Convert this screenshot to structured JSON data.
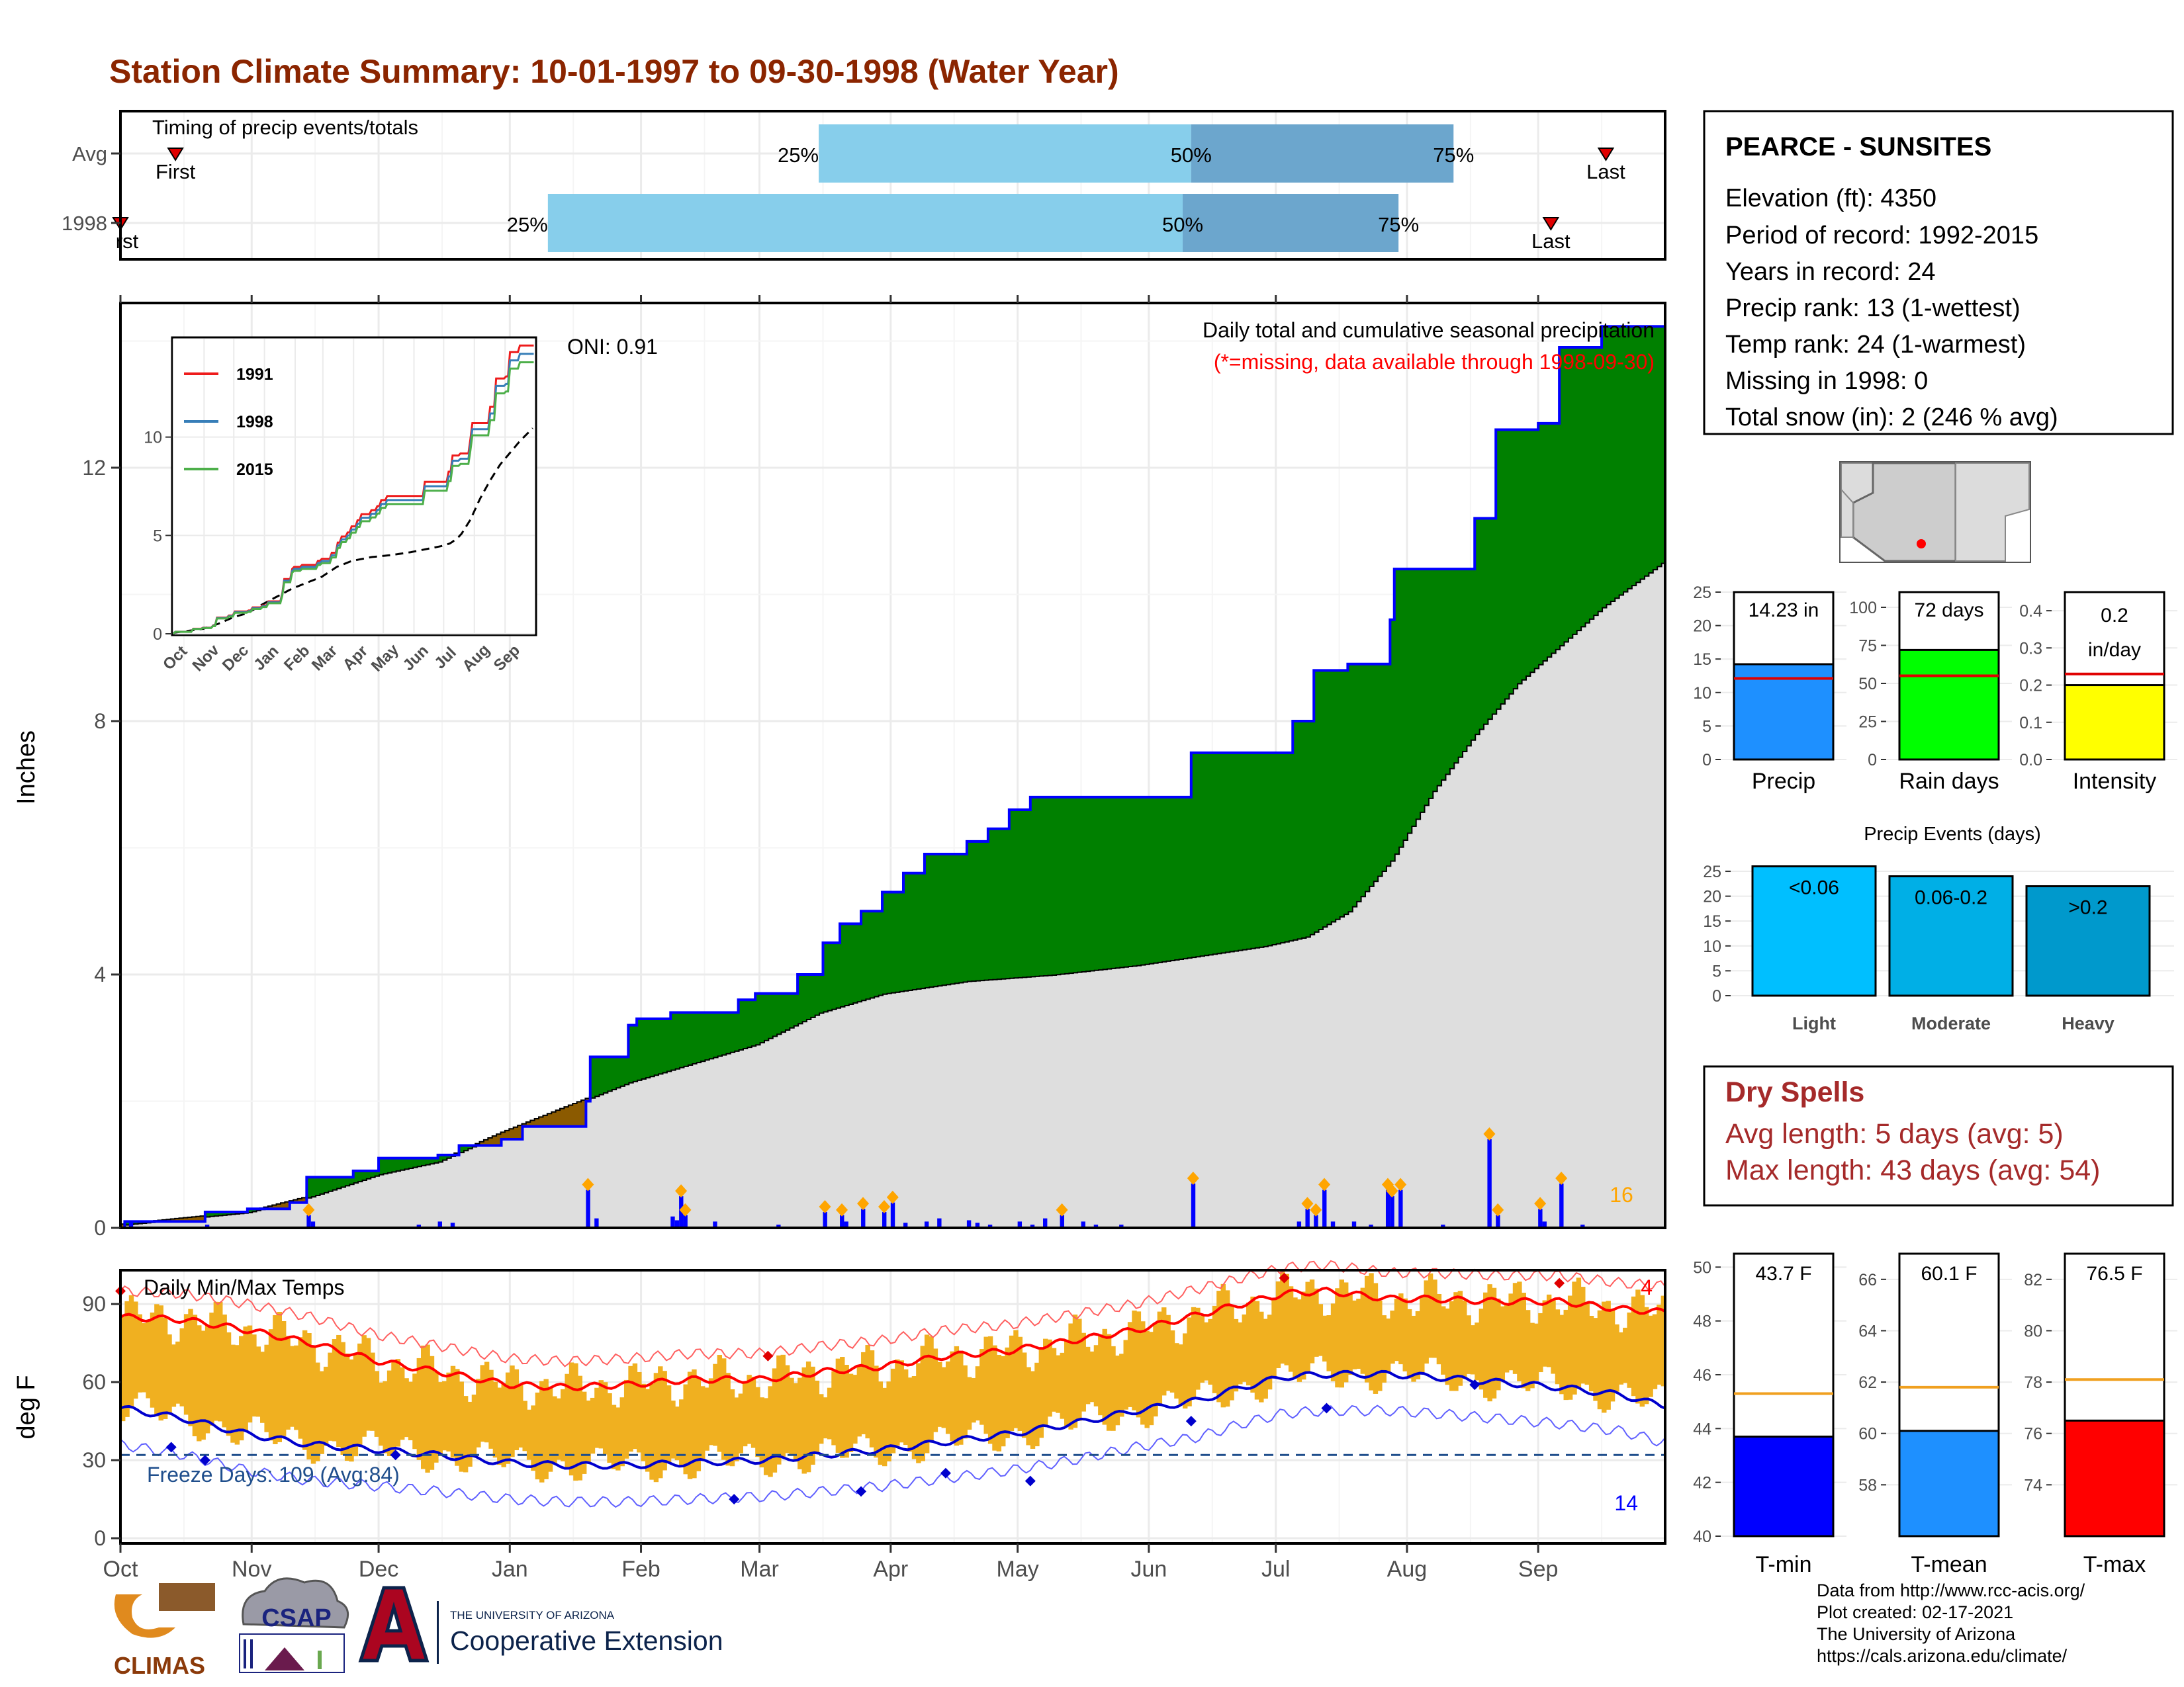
{
  "title": "Station Climate Summary: 10-01-1997 to 09-30-1998 (Water Year)",
  "colors": {
    "title": "#8b2500",
    "bar_light": "#87ceeb",
    "bar_mid": "#6ca6cd",
    "green": "#008000",
    "brown": "#8b5a00",
    "avg_fill": "#dedede",
    "precip_bar": "#0000ff",
    "temp_bar": "#f0b020",
    "avg_max": "#ff0000",
    "avg_min": "#0000cd",
    "dry_spell": "#a52a2a"
  },
  "timing_panel": {
    "label": "Timing of precip events/totals",
    "rows": [
      {
        "name": "Avg",
        "first_day": 13,
        "p25_day": 165,
        "p50_day": 253,
        "p75_day": 315,
        "last_day": 351
      },
      {
        "name": "1998",
        "first_day": 0,
        "p25_day": 101,
        "p50_day": 251,
        "p75_day": 302,
        "last_day": 338
      }
    ],
    "first_label": "First",
    "first_label_1998": "rst",
    "last_label": "Last",
    "p25_label": "25%",
    "p50_label": "50%",
    "p75_label": "75%"
  },
  "main_panel": {
    "ylabel": "Inches",
    "y_ticks": [
      0,
      4,
      8,
      12
    ],
    "oni_label": "ONI: 0.91",
    "subtitle": "Daily total and cumulative seasonal precipitation",
    "missing_note": "(*=missing, data available through 1998-09-30)",
    "extreme_count": "16"
  },
  "inset": {
    "legend": [
      "1991",
      "1998",
      "2015"
    ],
    "legend_colors": [
      "#ee1c1c",
      "#377eb8",
      "#4daf4a"
    ],
    "y_ticks": [
      0,
      5,
      10
    ],
    "x_ticks": [
      "Oct",
      "Nov",
      "Dec",
      "Jan",
      "Feb",
      "Mar",
      "Apr",
      "May",
      "Jun",
      "Jul",
      "Aug",
      "Sep"
    ]
  },
  "temp_panel": {
    "label": "Daily Min/Max Temps",
    "ylabel": "deg F",
    "y_ticks": [
      0,
      30,
      60,
      90
    ],
    "freeze_label": "Freeze Days: 109 (Avg:84)",
    "hot_count": "4",
    "cold_count": "14"
  },
  "x_months": [
    "Oct",
    "Nov",
    "Dec",
    "Jan",
    "Feb",
    "Mar",
    "Apr",
    "May",
    "Jun",
    "Jul",
    "Aug",
    "Sep"
  ],
  "station": {
    "name": "PEARCE - SUNSITES",
    "lines": [
      "Elevation (ft): 4350",
      "Period of record: 1992-2015",
      "Years in record: 24",
      "Precip rank: 13 (1-wettest)",
      "Temp rank: 24 (1-warmest)",
      "Missing in 1998: 0",
      "Total snow (in): 2 (246 % avg)"
    ]
  },
  "summary_bars": [
    {
      "label": "Precip",
      "value_label": "14.23 in",
      "value": 14.23,
      "avg": 12.1,
      "ymax": 25,
      "ticks": [
        0,
        5,
        10,
        15,
        20,
        25
      ],
      "color": "#1e90ff"
    },
    {
      "label": "Rain days",
      "value_label": "72 days",
      "value": 72,
      "avg": 55,
      "ymax": 110,
      "ticks": [
        0,
        25,
        50,
        75,
        100
      ],
      "color": "#00ff00"
    },
    {
      "label": "Intensity",
      "value_label": "0.2 in/day",
      "value_label_lines": [
        "0.2",
        "in/day"
      ],
      "value": 0.2,
      "avg": 0.23,
      "ymax": 0.45,
      "ticks": [
        0.0,
        0.1,
        0.2,
        0.3,
        0.4
      ],
      "color": "#ffff00"
    }
  ],
  "precip_events": {
    "title": "Precip Events (days)",
    "ticks": [
      0,
      5,
      10,
      15,
      20,
      25
    ],
    "bars": [
      {
        "name": "Light",
        "label": "<0.06",
        "value": 26,
        "color": "#00bfff"
      },
      {
        "name": "Moderate",
        "label": "0.06-0.2",
        "value": 24,
        "color": "#00afe6"
      },
      {
        "name": "Heavy",
        "label": ">0.2",
        "value": 22,
        "color": "#0099cc"
      }
    ]
  },
  "dry_spells": {
    "title": "Dry Spells",
    "avg_line": "Avg length: 5 days (avg: 5)",
    "max_line": "Max length: 43 days (avg: 54)"
  },
  "temp_bars": [
    {
      "label": "T-min",
      "value_label": "43.7 F",
      "value": 43.7,
      "avg": 45.3,
      "ymin": 40,
      "ymax": 50.5,
      "ticks": [
        40,
        42,
        44,
        46,
        48,
        50
      ],
      "color": "#0000ff"
    },
    {
      "label": "T-mean",
      "value_label": "60.1 F",
      "value": 60.1,
      "avg": 61.8,
      "ymin": 56,
      "ymax": 67,
      "ticks": [
        58,
        60,
        62,
        64,
        66
      ],
      "color": "#1e90ff"
    },
    {
      "label": "T-max",
      "value_label": "76.5 F",
      "value": 76.5,
      "avg": 78.1,
      "ymin": 72,
      "ymax": 83,
      "ticks": [
        74,
        76,
        78,
        80,
        82
      ],
      "color": "#ff0000"
    }
  ],
  "footer": {
    "lines": [
      "Data from http://www.rcc-acis.org/",
      "Plot created: 02-17-2021",
      "The University of Arizona",
      "https://cals.arizona.edu/climate/"
    ]
  },
  "logos": {
    "climas": "CLIMAS",
    "csap": "CSAP",
    "ua_small": "THE UNIVERSITY OF ARIZONA",
    "coop": "Cooperative Extension"
  },
  "chart_data": {
    "type": "area",
    "title": "Station Climate Summary: 10-01-1997 to 09-30-1998 (Water Year)",
    "xlabel": "",
    "ylabel": "Inches",
    "ylim": [
      0,
      14.6
    ],
    "x": [
      "Oct",
      "Nov",
      "Dec",
      "Jan",
      "Feb",
      "Mar",
      "Apr",
      "May",
      "Jun",
      "Jul",
      "Aug",
      "Sep"
    ],
    "series": [
      {
        "name": "1998",
        "points": [
          [
            0,
            0
          ],
          [
            1,
            0.1
          ],
          [
            20,
            0.25
          ],
          [
            30,
            0.3
          ],
          [
            40,
            0.4
          ],
          [
            44,
            0.8
          ],
          [
            55,
            0.9
          ],
          [
            61,
            1.1
          ],
          [
            70,
            1.1
          ],
          [
            75,
            1.15
          ],
          [
            80,
            1.3
          ],
          [
            90,
            1.4
          ],
          [
            95,
            1.6
          ],
          [
            110,
            2.0
          ],
          [
            111,
            2.7
          ],
          [
            120,
            3.2
          ],
          [
            122,
            3.3
          ],
          [
            130,
            3.4
          ],
          [
            140,
            3.4
          ],
          [
            146,
            3.6
          ],
          [
            150,
            3.7
          ],
          [
            160,
            4.0
          ],
          [
            166,
            4.5
          ],
          [
            170,
            4.8
          ],
          [
            175,
            5.0
          ],
          [
            180,
            5.3
          ],
          [
            185,
            5.6
          ],
          [
            190,
            5.9
          ],
          [
            200,
            6.1
          ],
          [
            205,
            6.3
          ],
          [
            210,
            6.6
          ],
          [
            215,
            6.8
          ],
          [
            230,
            6.8
          ],
          [
            250,
            6.8
          ],
          [
            253,
            7.5
          ],
          [
            270,
            7.5
          ],
          [
            277,
            8.0
          ],
          [
            282,
            8.8
          ],
          [
            290,
            8.9
          ],
          [
            300,
            9.6
          ],
          [
            301,
            10.4
          ],
          [
            310,
            10.4
          ],
          [
            320,
            11.2
          ],
          [
            325,
            12.6
          ],
          [
            335,
            12.7
          ],
          [
            340,
            13.9
          ],
          [
            350,
            14.23
          ],
          [
            364,
            14.23
          ]
        ]
      },
      {
        "name": "Average",
        "points": [
          [
            0,
            0.05
          ],
          [
            30,
            0.25
          ],
          [
            45,
            0.5
          ],
          [
            61,
            0.85
          ],
          [
            75,
            1.05
          ],
          [
            90,
            1.5
          ],
          [
            105,
            1.9
          ],
          [
            120,
            2.3
          ],
          [
            135,
            2.6
          ],
          [
            150,
            2.9
          ],
          [
            165,
            3.4
          ],
          [
            180,
            3.7
          ],
          [
            200,
            3.9
          ],
          [
            220,
            4.0
          ],
          [
            240,
            4.15
          ],
          [
            255,
            4.3
          ],
          [
            270,
            4.45
          ],
          [
            280,
            4.6
          ],
          [
            290,
            5.0
          ],
          [
            300,
            5.8
          ],
          [
            310,
            6.9
          ],
          [
            320,
            7.8
          ],
          [
            330,
            8.6
          ],
          [
            340,
            9.2
          ],
          [
            350,
            9.8
          ],
          [
            360,
            10.3
          ],
          [
            364,
            10.5
          ]
        ]
      }
    ],
    "daily_precip": [
      [
        2,
        0.1
      ],
      [
        20,
        0.05
      ],
      [
        44,
        0.2
      ],
      [
        45,
        0.1
      ],
      [
        70,
        0.05
      ],
      [
        75,
        0.1
      ],
      [
        78,
        0.08
      ],
      [
        110,
        0.6
      ],
      [
        112,
        0.15
      ],
      [
        130,
        0.18
      ],
      [
        131,
        0.12
      ],
      [
        132,
        0.5
      ],
      [
        133,
        0.2
      ],
      [
        140,
        0.1
      ],
      [
        155,
        0.05
      ],
      [
        166,
        0.25
      ],
      [
        170,
        0.2
      ],
      [
        171,
        0.1
      ],
      [
        175,
        0.3
      ],
      [
        180,
        0.25
      ],
      [
        182,
        0.4
      ],
      [
        185,
        0.08
      ],
      [
        190,
        0.1
      ],
      [
        193,
        0.15
      ],
      [
        200,
        0.12
      ],
      [
        202,
        0.08
      ],
      [
        205,
        0.05
      ],
      [
        212,
        0.1
      ],
      [
        215,
        0.05
      ],
      [
        218,
        0.15
      ],
      [
        222,
        0.2
      ],
      [
        227,
        0.1
      ],
      [
        230,
        0.05
      ],
      [
        236,
        0.05
      ],
      [
        253,
        0.7
      ],
      [
        278,
        0.1
      ],
      [
        280,
        0.3
      ],
      [
        282,
        0.2
      ],
      [
        284,
        0.6
      ],
      [
        286,
        0.1
      ],
      [
        291,
        0.1
      ],
      [
        295,
        0.05
      ],
      [
        299,
        0.6
      ],
      [
        300,
        0.5
      ],
      [
        302,
        0.6
      ],
      [
        312,
        0.05
      ],
      [
        323,
        1.4
      ],
      [
        325,
        0.2
      ],
      [
        335,
        0.3
      ],
      [
        336,
        0.1
      ],
      [
        340,
        0.7
      ],
      [
        345,
        0.05
      ]
    ],
    "temperature": {
      "ylabel": "deg F",
      "ylim": [
        -2,
        103
      ],
      "avg_max": [
        [
          0,
          85
        ],
        [
          15,
          84
        ],
        [
          30,
          80
        ],
        [
          45,
          75
        ],
        [
          61,
          68
        ],
        [
          75,
          64
        ],
        [
          92,
          59
        ],
        [
          105,
          58
        ],
        [
          120,
          59
        ],
        [
          135,
          61
        ],
        [
          152,
          61
        ],
        [
          166,
          64
        ],
        [
          180,
          66
        ],
        [
          195,
          70
        ],
        [
          210,
          72
        ],
        [
          225,
          76
        ],
        [
          240,
          80
        ],
        [
          255,
          86
        ],
        [
          265,
          90
        ],
        [
          275,
          94
        ],
        [
          285,
          95
        ],
        [
          290,
          94
        ],
        [
          300,
          92
        ],
        [
          310,
          92
        ],
        [
          325,
          91
        ],
        [
          340,
          91
        ],
        [
          355,
          88
        ],
        [
          364,
          87
        ]
      ],
      "avg_min": [
        [
          0,
          50
        ],
        [
          15,
          46
        ],
        [
          30,
          40
        ],
        [
          45,
          36
        ],
        [
          61,
          34
        ],
        [
          75,
          32
        ],
        [
          92,
          29
        ],
        [
          105,
          28
        ],
        [
          120,
          28
        ],
        [
          135,
          29
        ],
        [
          152,
          30
        ],
        [
          166,
          32
        ],
        [
          180,
          34
        ],
        [
          195,
          37
        ],
        [
          210,
          40
        ],
        [
          225,
          44
        ],
        [
          240,
          49
        ],
        [
          255,
          53
        ],
        [
          265,
          58
        ],
        [
          275,
          62
        ],
        [
          285,
          63
        ],
        [
          290,
          63
        ],
        [
          300,
          63
        ],
        [
          310,
          62
        ],
        [
          325,
          60
        ],
        [
          340,
          58
        ],
        [
          355,
          55
        ],
        [
          364,
          51
        ]
      ],
      "freeze_line": 32
    }
  }
}
